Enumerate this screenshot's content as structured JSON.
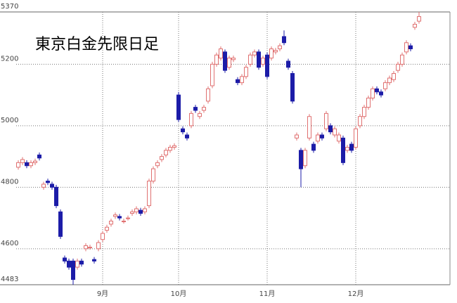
{
  "chart_data": {
    "type": "candlestick",
    "title": "東京白金先限日足",
    "categories": [
      null,
      null,
      null,
      null,
      null,
      null,
      null,
      null,
      null,
      null,
      null,
      null,
      null,
      null,
      null,
      null,
      null,
      null,
      null,
      null,
      "9月",
      null,
      null,
      null,
      null,
      null,
      null,
      null,
      null,
      null,
      null,
      null,
      null,
      null,
      null,
      null,
      null,
      null,
      "10月",
      null,
      null,
      null,
      null,
      null,
      null,
      null,
      null,
      null,
      null,
      null,
      null,
      null,
      null,
      null,
      null,
      null,
      null,
      null,
      null,
      "11月",
      null,
      null,
      null,
      null,
      null,
      null,
      null,
      null,
      null,
      null,
      null,
      null,
      null,
      null,
      null,
      null,
      null,
      null,
      null,
      null,
      "12月",
      null,
      null,
      null,
      null,
      null,
      null,
      null,
      null,
      null,
      null,
      null,
      null,
      null,
      null,
      null
    ],
    "open": [
      4865,
      4880,
      4880,
      4870,
      4880,
      4905,
      4800,
      4820,
      4810,
      4800,
      4720,
      4570,
      4560,
      4560,
      4540,
      4560,
      4600,
      4605,
      4565,
      4600,
      4630,
      4660,
      4680,
      4705,
      4705,
      4690,
      4700,
      4715,
      4720,
      4725,
      4720,
      4740,
      4820,
      4870,
      4890,
      4905,
      4920,
      4930,
      5100,
      4990,
      4970,
      5000,
      5060,
      5030,
      5050,
      5080,
      5130,
      5200,
      5220,
      5240,
      5190,
      5215,
      5150,
      5140,
      5160,
      5200,
      5230,
      5240,
      5200,
      5230,
      5220,
      5240,
      5250,
      5290,
      5210,
      5170,
      4960,
      4920,
      4870,
      4960,
      4940,
      4950,
      4970,
      4990,
      5000,
      4970,
      4950,
      4960,
      4920,
      4940,
      4930,
      5000,
      5030,
      5060,
      5090,
      5120,
      5110,
      5120,
      5140,
      5150,
      5180,
      5200,
      5240,
      5260,
      5320,
      5340
    ],
    "high": [
      4888,
      4898,
      4888,
      4888,
      4893,
      4913,
      4818,
      4828,
      4818,
      4808,
      4728,
      4578,
      4568,
      4568,
      4568,
      4568,
      4618,
      4613,
      4573,
      4628,
      4658,
      4678,
      4698,
      4718,
      4713,
      4698,
      4708,
      4728,
      4738,
      4733,
      4738,
      4828,
      4868,
      4888,
      4908,
      4928,
      4938,
      4943,
      5110,
      4998,
      4978,
      5048,
      5068,
      5048,
      5068,
      5128,
      5208,
      5238,
      5258,
      5248,
      5228,
      5228,
      5158,
      5168,
      5198,
      5238,
      5248,
      5248,
      5228,
      5238,
      5258,
      5253,
      5268,
      5310,
      5218,
      5178,
      4978,
      4928,
      4928,
      5038,
      4948,
      4978,
      4978,
      5048,
      5008,
      4998,
      4978,
      4968,
      4938,
      4948,
      4998,
      5038,
      5068,
      5098,
      5128,
      5128,
      5118,
      5148,
      5163,
      5178,
      5208,
      5238,
      5278,
      5268,
      5338,
      5370
    ],
    "low": [
      4857,
      4872,
      4862,
      4862,
      4872,
      4887,
      4792,
      4807,
      4792,
      4732,
      4632,
      4552,
      4532,
      4483,
      4532,
      4542,
      4592,
      4597,
      4552,
      4592,
      4622,
      4652,
      4672,
      4697,
      4692,
      4682,
      4692,
      4707,
      4712,
      4707,
      4712,
      4732,
      4812,
      4862,
      4882,
      4897,
      4912,
      4922,
      5012,
      4972,
      4952,
      4992,
      5042,
      5022,
      5042,
      5072,
      5122,
      5192,
      5212,
      5172,
      5182,
      5207,
      5132,
      5132,
      5152,
      5192,
      5222,
      5182,
      5192,
      5152,
      5212,
      5232,
      5242,
      5262,
      5182,
      5072,
      4952,
      4800,
      4862,
      4952,
      4912,
      4942,
      4952,
      4982,
      4972,
      4962,
      4942,
      4872,
      4912,
      4912,
      4922,
      4992,
      5022,
      5052,
      5082,
      5102,
      5092,
      5112,
      5132,
      5142,
      5172,
      5192,
      5232,
      5242,
      5312,
      5332
    ],
    "close": [
      4880,
      4890,
      4870,
      4880,
      4885,
      4895,
      4810,
      4815,
      4800,
      4740,
      4640,
      4560,
      4540,
      4500,
      4560,
      4550,
      4610,
      4605,
      4560,
      4620,
      4650,
      4670,
      4690,
      4710,
      4700,
      4690,
      4700,
      4720,
      4730,
      4715,
      4730,
      4820,
      4860,
      4880,
      4900,
      4920,
      4930,
      4935,
      5020,
      4980,
      4960,
      5040,
      5050,
      5040,
      5060,
      5120,
      5200,
      5230,
      5250,
      5180,
      5220,
      5220,
      5140,
      5160,
      5190,
      5230,
      5240,
      5190,
      5220,
      5160,
      5250,
      5245,
      5260,
      5270,
      5190,
      5080,
      4970,
      4860,
      4920,
      5030,
      4920,
      4970,
      4960,
      5040,
      4980,
      4990,
      4970,
      4880,
      4930,
      4920,
      4990,
      5030,
      5060,
      5090,
      5120,
      5110,
      5100,
      5140,
      5155,
      5170,
      5200,
      5230,
      5270,
      5250,
      5330,
      5355
    ],
    "up_color": "#e07070",
    "down_color": "#1c1ca8",
    "ylim": [
      4483,
      5370
    ],
    "yticks": [
      4483,
      4600,
      4800,
      5000,
      5200,
      5370
    ],
    "grid": true
  }
}
